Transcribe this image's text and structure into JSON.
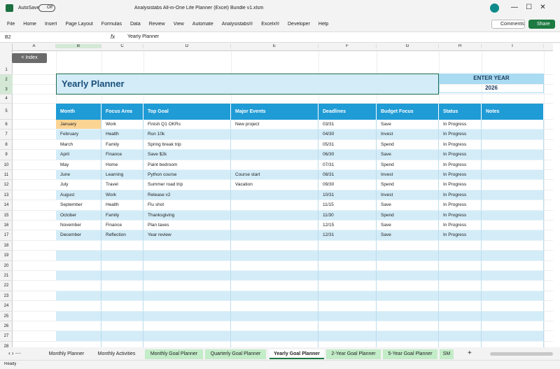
{
  "titlebar": {
    "autosave": "AutoSave",
    "toggle": "Off",
    "filename": "Analysistabs All-in-One Life Planner (Excel) Bundle v1.xlsm"
  },
  "menu": {
    "items": [
      "File",
      "Home",
      "Insert",
      "Page Layout",
      "Formulas",
      "Data",
      "Review",
      "View",
      "Automate",
      "Analysistabs®",
      "Excelx®",
      "Developer",
      "Help"
    ],
    "comments": "Comments",
    "share": "Share"
  },
  "formula_bar": {
    "name_box": "B2",
    "fx": "fx",
    "content": "Yearly Planner"
  },
  "columns": [
    "A",
    "B",
    "C",
    "D",
    "E",
    "F",
    "G",
    "H",
    "I"
  ],
  "sheet": {
    "index_button": "< Index",
    "title": "Yearly Planner",
    "enter_year_label": "ENTER YEAR",
    "year": 2026,
    "table": {
      "headers": [
        "Month",
        "Focus Area",
        "Top Goal",
        "Major Events",
        "Deadlines",
        "Budget Focus",
        "Status",
        "Notes"
      ],
      "rows": [
        {
          "month": "January",
          "focus": "Work",
          "goal": "Finish Q1 OKRs",
          "event": "New project",
          "deadline": "03/31",
          "budget": "Save",
          "status": "In Progress"
        },
        {
          "month": "February",
          "focus": "Health",
          "goal": "Run 10k",
          "deadline": "04/30",
          "budget": "Invest",
          "status": "In Progress"
        },
        {
          "month": "March",
          "focus": "Family",
          "goal": "Spring break trip",
          "deadline": "05/31",
          "budget": "Spend",
          "status": "In Progress"
        },
        {
          "month": "April",
          "focus": "Finance",
          "goal": "Save $2k",
          "deadline": "06/30",
          "budget": "Save",
          "status": "In Progress"
        },
        {
          "month": "May",
          "focus": "Home",
          "goal": "Paint bedroom",
          "deadline": "07/31",
          "budget": "Spend",
          "status": "In Progress"
        },
        {
          "month": "June",
          "focus": "Learning",
          "goal": "Python course",
          "event": "Course start",
          "deadline": "08/31",
          "budget": "Invest",
          "status": "In Progress"
        },
        {
          "month": "July",
          "focus": "Travel",
          "goal": "Summer road trip",
          "event": "Vacation",
          "deadline": "09/30",
          "budget": "Spend",
          "status": "In Progress"
        },
        {
          "month": "August",
          "focus": "Work",
          "goal": "Release v2",
          "deadline": "10/31",
          "budget": "Invest",
          "status": "In Progress"
        },
        {
          "month": "September",
          "focus": "Health",
          "goal": "Flu shot",
          "deadline": "11/15",
          "budget": "Save",
          "status": "In Progress"
        },
        {
          "month": "October",
          "focus": "Family",
          "goal": "Thanksgiving",
          "deadline": "11/30",
          "budget": "Spend",
          "status": "In Progress"
        },
        {
          "month": "November",
          "focus": "Finance",
          "goal": "Plan taxes",
          "deadline": "12/15",
          "budget": "Save",
          "status": "In Progress"
        },
        {
          "month": "December",
          "focus": "Reflection",
          "goal": "Year review",
          "deadline": "12/31",
          "budget": "Save",
          "status": "In Progress"
        }
      ]
    }
  },
  "tabs": [
    {
      "name": "Monthly Planner",
      "colored": false
    },
    {
      "name": "Monthly Activities",
      "colored": false
    },
    {
      "name": "Monthly Goal Planner",
      "colored": true
    },
    {
      "name": "Quarterly Goal Planner",
      "colored": true
    },
    {
      "name": "Yearly Goal Planner",
      "colored": false,
      "active": true
    },
    {
      "name": "2-Year Goal Planner",
      "colored": true
    },
    {
      "name": "5-Year Goal Planner",
      "colored": true
    },
    {
      "name": "SM",
      "colored": true
    }
  ],
  "status_bar": {
    "text": "Ready"
  }
}
